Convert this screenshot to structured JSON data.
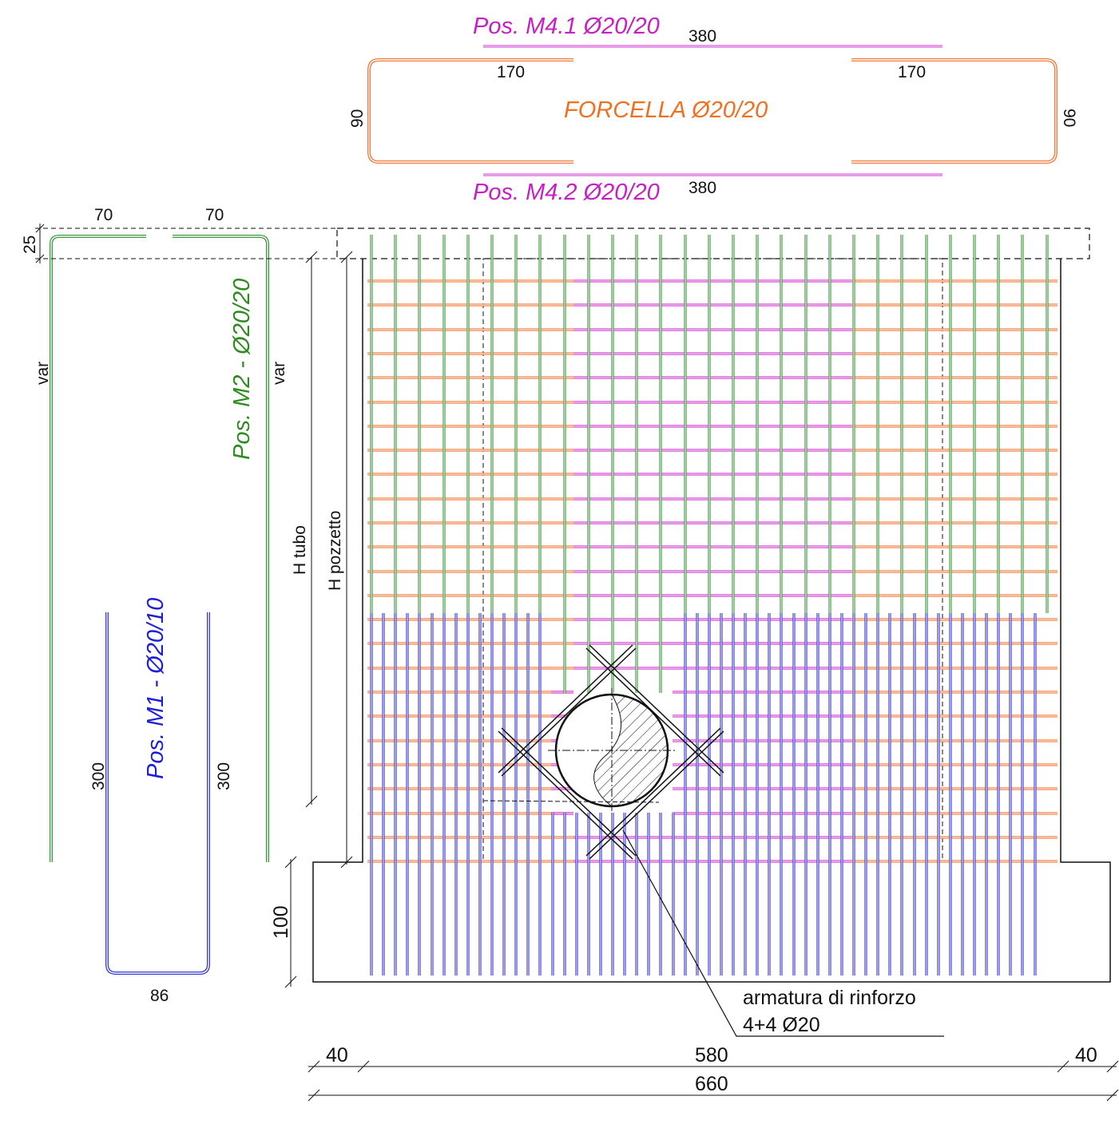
{
  "colors": {
    "green": "#3c9a3c",
    "green_text": "#2e8b1e",
    "blue": "#3a3ad0",
    "blue_text": "#1e1ed8",
    "orange": "#f07a3a",
    "orange_text": "#f07020",
    "magenta": "#d23ad2",
    "magenta_text": "#c81ec8",
    "red": "#e8483c",
    "outline": "#111111"
  },
  "labels": {
    "pos_m41": "Pos. M4.1 Ø20/20",
    "pos_m42": "Pos. M4.2 Ø20/20",
    "forcella": "FORCELLA Ø20/20",
    "pos_m2": "Pos. M2 -  Ø20/20",
    "pos_m1": "Pos. M1 -  Ø20/10",
    "rinforzo_line1": "armatura di rinforzo",
    "rinforzo_line2": "4+4 Ø20",
    "h_tubo": "H tubo",
    "h_pozzetto": "H pozzetto"
  },
  "dimensions": {
    "m41_length": "380",
    "m42_length": "380",
    "forcella_left_leg": "170",
    "forcella_right_leg": "170",
    "forcella_left_height": "90",
    "forcella_right_height": "90",
    "m2_left_leg": "70",
    "m2_right_leg": "70",
    "m2_top": "25",
    "m2_left_var": "var",
    "m2_right_var": "var",
    "m1_left_height": "300",
    "m1_right_height": "300",
    "m1_width": "86",
    "base_height": "100",
    "bottom_left": "40",
    "bottom_mid": "580",
    "bottom_right": "40",
    "bottom_total": "660"
  }
}
